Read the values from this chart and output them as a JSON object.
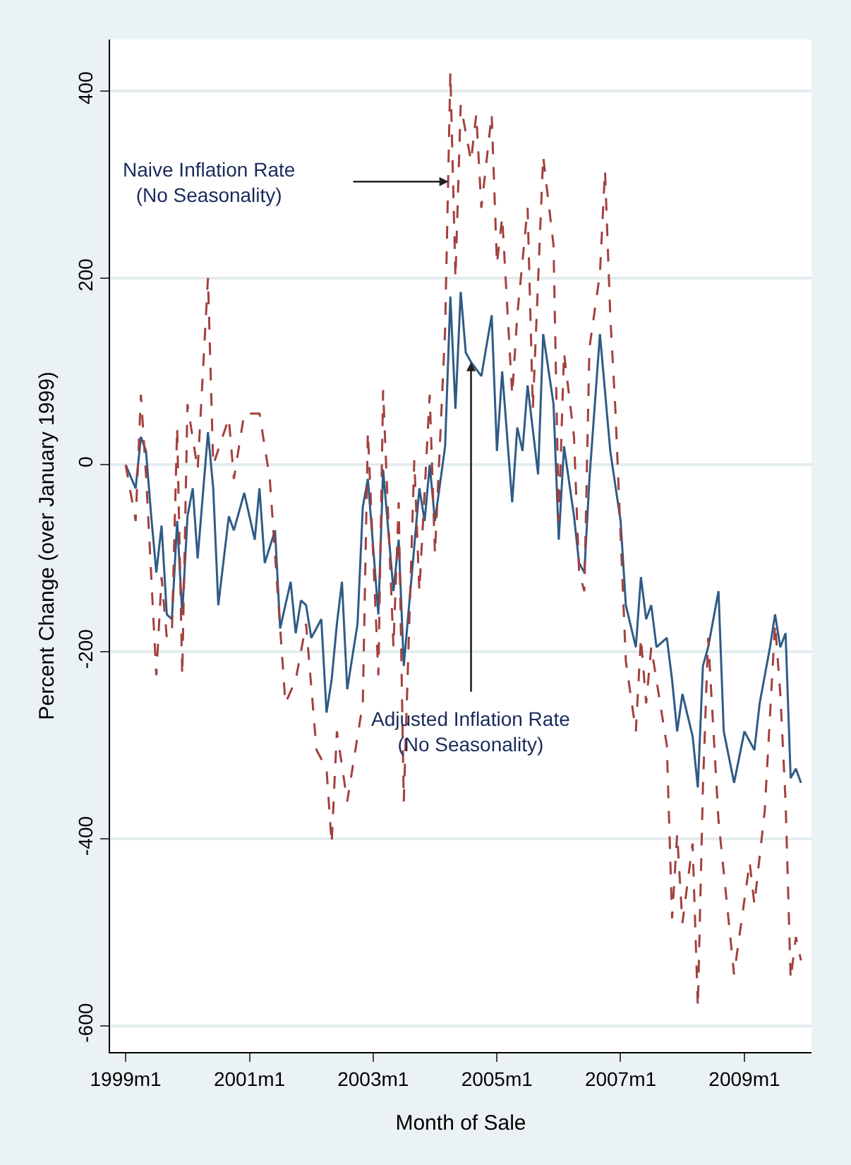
{
  "chart_data": {
    "type": "line",
    "xlabel": "Month of Sale",
    "ylabel": "Percent Change (over January 1999)",
    "xlim": [
      "1998-10",
      "2010-02"
    ],
    "xticks": [
      {
        "value": "1999-01",
        "label": "1999m1"
      },
      {
        "value": "2001-01",
        "label": "2001m1"
      },
      {
        "value": "2003-01",
        "label": "2003m1"
      },
      {
        "value": "2005-01",
        "label": "2005m1"
      },
      {
        "value": "2007-01",
        "label": "2007m1"
      },
      {
        "value": "2009-01",
        "label": "2009m1"
      }
    ],
    "ylim": [
      -628,
      455
    ],
    "yticks": [
      -600,
      -400,
      -200,
      0,
      200,
      400
    ],
    "grid": "y",
    "series": [
      {
        "color": "#2f5b86",
        "line_style": "solid",
        "x": [
          "1999-01",
          "1999-03",
          "1999-04",
          "1999-05",
          "1999-06",
          "1999-07",
          "1999-08",
          "1999-09",
          "1999-10",
          "1999-11",
          "1999-12",
          "2000-01",
          "2000-02",
          "2000-03",
          "2000-05",
          "2000-06",
          "2000-07",
          "2000-09",
          "2000-10",
          "2000-12",
          "2001-02",
          "2001-03",
          "2001-04",
          "2001-06",
          "2001-07",
          "2001-09",
          "2001-10",
          "2001-11",
          "2001-12",
          "2002-01",
          "2002-03",
          "2002-04",
          "2002-05",
          "2002-06",
          "2002-07",
          "2002-08",
          "2002-10",
          "2002-11",
          "2002-12",
          "2003-02",
          "2003-03",
          "2003-05",
          "2003-06",
          "2003-07",
          "2003-10",
          "2003-11",
          "2003-12",
          "2004-01",
          "2004-03",
          "2004-04",
          "2004-05",
          "2004-06",
          "2004-07",
          "2004-08",
          "2004-10",
          "2004-12",
          "2005-01",
          "2005-02",
          "2005-04",
          "2005-05",
          "2005-06",
          "2005-07",
          "2005-09",
          "2005-10",
          "2005-12",
          "2006-01",
          "2006-02",
          "2006-04",
          "2006-05",
          "2006-06",
          "2006-07",
          "2006-09",
          "2006-11",
          "2007-01",
          "2007-02",
          "2007-04",
          "2007-05",
          "2007-06",
          "2007-07",
          "2007-08",
          "2007-10",
          "2007-11",
          "2007-12",
          "2008-01",
          "2008-03",
          "2008-04",
          "2008-05",
          "2008-06",
          "2008-08",
          "2008-09",
          "2008-11",
          "2009-01",
          "2009-03",
          "2009-04",
          "2009-06",
          "2009-07",
          "2009-08",
          "2009-09",
          "2009-10",
          "2009-11",
          "2009-12"
        ],
        "values": [
          0,
          -25,
          30,
          15,
          -55,
          -115,
          -65,
          -160,
          -165,
          -60,
          -160,
          -55,
          -25,
          -100,
          35,
          -25,
          -150,
          -55,
          -70,
          -30,
          -80,
          -25,
          -105,
          -70,
          -175,
          -125,
          -180,
          -145,
          -150,
          -185,
          -165,
          -265,
          -230,
          -170,
          -125,
          -240,
          -170,
          -45,
          -15,
          -160,
          -5,
          -135,
          -80,
          -215,
          -25,
          -60,
          0,
          -60,
          20,
          180,
          60,
          185,
          120,
          110,
          95,
          160,
          15,
          100,
          -40,
          40,
          15,
          85,
          -10,
          140,
          65,
          -80,
          20,
          -55,
          -105,
          -115,
          -15,
          140,
          15,
          -60,
          -150,
          -195,
          -120,
          -165,
          -150,
          -195,
          -185,
          -230,
          -285,
          -245,
          -290,
          -345,
          -215,
          -195,
          -135,
          -285,
          -340,
          -285,
          -305,
          -255,
          -195,
          -160,
          -195,
          -180,
          -335,
          -325,
          -340
        ]
      },
      {
        "color": "#a3403d",
        "line_style": "dashed",
        "x": [
          "1999-01",
          "1999-03",
          "1999-04",
          "1999-05",
          "1999-07",
          "1999-08",
          "1999-09",
          "1999-10",
          "1999-11",
          "1999-12",
          "2000-01",
          "2000-03",
          "2000-05",
          "2000-06",
          "2000-09",
          "2000-10",
          "2000-12",
          "2001-03",
          "2001-05",
          "2001-08",
          "2001-10",
          "2001-12",
          "2002-02",
          "2002-04",
          "2002-05",
          "2002-06",
          "2002-08",
          "2002-11",
          "2002-12",
          "2003-02",
          "2003-03",
          "2003-05",
          "2003-06",
          "2003-07",
          "2003-09",
          "2003-10",
          "2003-12",
          "2004-01",
          "2004-03",
          "2004-04",
          "2004-05",
          "2004-06",
          "2004-08",
          "2004-09",
          "2004-10",
          "2004-12",
          "2005-01",
          "2005-02",
          "2005-04",
          "2005-05",
          "2005-07",
          "2005-08",
          "2005-10",
          "2005-12",
          "2006-01",
          "2006-02",
          "2006-04",
          "2006-05",
          "2006-06",
          "2006-07",
          "2006-09",
          "2006-10",
          "2006-11",
          "2006-12",
          "2007-02",
          "2007-04",
          "2007-05",
          "2007-06",
          "2007-07",
          "2007-10",
          "2007-11",
          "2007-12",
          "2008-01",
          "2008-03",
          "2008-04",
          "2008-05",
          "2008-06",
          "2008-08",
          "2008-11",
          "2009-02",
          "2009-03",
          "2009-05",
          "2009-07",
          "2009-08",
          "2009-09",
          "2009-10",
          "2009-11",
          "2009-12"
        ],
        "values": [
          0,
          -60,
          75,
          -10,
          -225,
          -120,
          -185,
          -180,
          40,
          -225,
          65,
          -5,
          200,
          0,
          50,
          -15,
          55,
          55,
          -15,
          -255,
          -230,
          -170,
          -305,
          -325,
          -405,
          -285,
          -360,
          -255,
          35,
          -225,
          80,
          -195,
          -40,
          -360,
          5,
          -135,
          75,
          -95,
          145,
          420,
          200,
          385,
          325,
          375,
          275,
          375,
          215,
          265,
          75,
          160,
          275,
          60,
          330,
          235,
          -60,
          120,
          30,
          -115,
          -135,
          125,
          205,
          315,
          160,
          60,
          -210,
          -285,
          -185,
          -255,
          -195,
          -300,
          -485,
          -395,
          -490,
          -405,
          -580,
          -345,
          -185,
          -380,
          -545,
          -425,
          -470,
          -370,
          -170,
          -245,
          -360,
          -550,
          -505,
          -530
        ]
      }
    ],
    "annotations": [
      {
        "text": "Naive Inflation Rate\n(No Seasonality)",
        "x": "2004-03-21",
        "y": 303
      },
      {
        "text": "Adjusted Inflation Rate\n(No Seasonality)",
        "x": "2004-08",
        "y": 110
      }
    ]
  }
}
